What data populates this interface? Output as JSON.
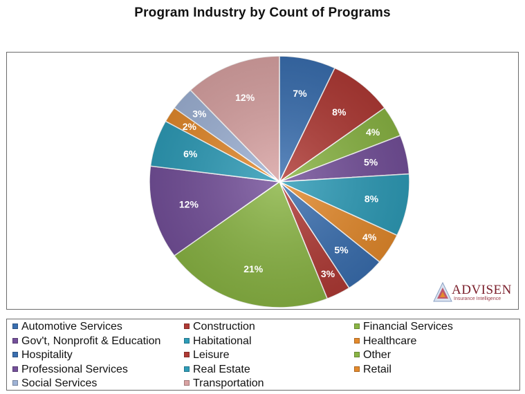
{
  "chart_data": {
    "type": "pie",
    "title": "Program Industry by Count of Programs",
    "categories": [
      "Automotive Services",
      "Construction",
      "Financial Services",
      "Gov't, Nonprofit & Education",
      "Habitational",
      "Healthcare",
      "Hospitality",
      "Leisure",
      "Other",
      "Professional Services",
      "Real Estate",
      "Retail",
      "Social Services",
      "Transportation"
    ],
    "values": [
      7,
      8,
      4,
      5,
      8,
      4,
      5,
      3,
      21,
      12,
      6,
      2,
      3,
      12
    ],
    "data_labels": [
      "7%",
      "8%",
      "4%",
      "5%",
      "8%",
      "4%",
      "5%",
      "3%",
      "21%",
      "12%",
      "6%",
      "2%",
      "3%",
      "12%"
    ],
    "slice_order": [
      0,
      1,
      2,
      3,
      4,
      5,
      6,
      7,
      8,
      9,
      10,
      11,
      12,
      13
    ],
    "legend_position": "bottom",
    "colors": [
      "#3a6fb0",
      "#b03a35",
      "#8ab544",
      "#74509a",
      "#2e9cb8",
      "#e48a2c",
      "#3a6fb0",
      "#b03a35",
      "#8ab544",
      "#74509a",
      "#2e9cb8",
      "#e48a2c",
      "#9fb3d6",
      "#d9a3a3"
    ]
  },
  "logo": {
    "name": "ADVISEN",
    "tagline": "Insurance Intelligence"
  }
}
